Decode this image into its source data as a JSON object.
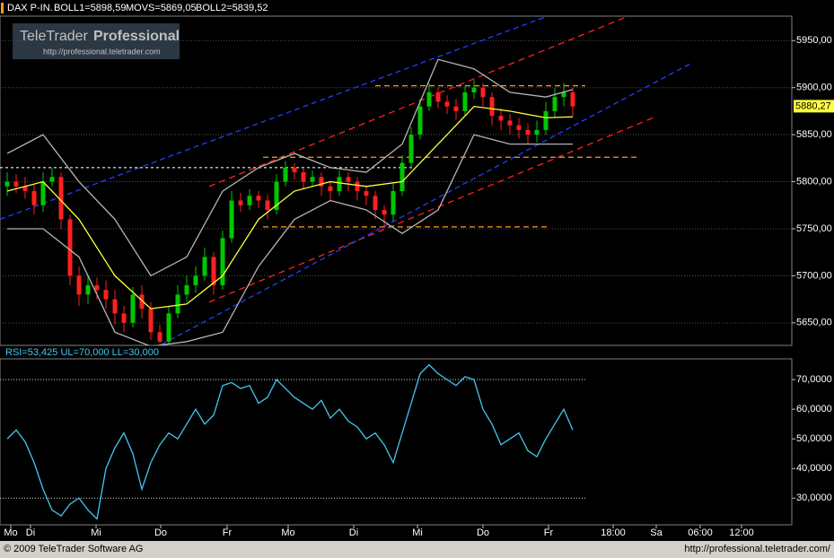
{
  "branding": {
    "name": "TeleTrader",
    "product": "Professional",
    "url": "http://professional.teletrader.com"
  },
  "footer": {
    "copyright": "© 2009 TeleTrader Software AG",
    "url": "http://professional.teletrader.com/"
  },
  "chart_data": [
    {
      "type": "candlestick",
      "title": "DAX P-IN.",
      "indicators": [
        "BOLL1=5898,59",
        "MOVS=5869,05",
        "BOLL2=5839,52"
      ],
      "last_value": {
        "value": 5880.27,
        "label": "5880,27"
      },
      "up_color": "#00c800",
      "down_color": "#ff2020",
      "grid": true,
      "xlim": [
        -0.8,
        87.4
      ],
      "ylim": [
        5626,
        5976
      ],
      "yticks": [
        {
          "value": 5650,
          "label": "5650,00"
        },
        {
          "value": 5700,
          "label": "5700,00"
        },
        {
          "value": 5750,
          "label": "5750,00"
        },
        {
          "value": 5800,
          "label": "5800,00"
        },
        {
          "value": 5850,
          "label": "5850,00"
        },
        {
          "value": 5900,
          "label": "5900,00"
        },
        {
          "value": 5950,
          "label": "5950,00"
        }
      ],
      "x": [
        0,
        1,
        2,
        3,
        4,
        5,
        6,
        7,
        8,
        9,
        10,
        11,
        12,
        13,
        14,
        15,
        16,
        17,
        18,
        19,
        20,
        21,
        22,
        23,
        24,
        25,
        26,
        27,
        28,
        29,
        30,
        31,
        32,
        33,
        34,
        35,
        36,
        37,
        38,
        39,
        40,
        41,
        42,
        43,
        44,
        45,
        46,
        47,
        48,
        49,
        50,
        51,
        52,
        53,
        54,
        55,
        56,
        57,
        58,
        59,
        60,
        61,
        62,
        63
      ],
      "open": [
        5795,
        5800,
        5795,
        5790,
        5775,
        5800,
        5805,
        5760,
        5700,
        5680,
        5690,
        5685,
        5675,
        5660,
        5650,
        5680,
        5665,
        5640,
        5630,
        5660,
        5680,
        5690,
        5700,
        5720,
        5690,
        5740,
        5780,
        5775,
        5785,
        5780,
        5770,
        5800,
        5815,
        5810,
        5800,
        5805,
        5795,
        5790,
        5805,
        5800,
        5790,
        5785,
        5770,
        5765,
        5790,
        5820,
        5850,
        5880,
        5895,
        5885,
        5880,
        5875,
        5895,
        5900,
        5890,
        5870,
        5865,
        5860,
        5855,
        5850,
        5855,
        5875,
        5890,
        5895
      ],
      "high": [
        5810,
        5808,
        5805,
        5798,
        5810,
        5815,
        5810,
        5765,
        5710,
        5700,
        5698,
        5695,
        5685,
        5668,
        5688,
        5690,
        5672,
        5648,
        5668,
        5690,
        5700,
        5710,
        5730,
        5725,
        5748,
        5790,
        5788,
        5792,
        5790,
        5786,
        5808,
        5822,
        5820,
        5815,
        5812,
        5810,
        5800,
        5812,
        5810,
        5805,
        5796,
        5790,
        5775,
        5798,
        5828,
        5858,
        5888,
        5905,
        5900,
        5892,
        5888,
        5902,
        5908,
        5905,
        5895,
        5878,
        5872,
        5868,
        5862,
        5865,
        5885,
        5900,
        5905,
        5900
      ],
      "low": [
        5785,
        5788,
        5782,
        5765,
        5768,
        5795,
        5750,
        5690,
        5668,
        5670,
        5675,
        5665,
        5648,
        5640,
        5645,
        5655,
        5632,
        5628,
        5628,
        5655,
        5672,
        5682,
        5695,
        5680,
        5685,
        5735,
        5768,
        5770,
        5772,
        5760,
        5765,
        5795,
        5802,
        5792,
        5795,
        5785,
        5780,
        5785,
        5790,
        5780,
        5775,
        5760,
        5752,
        5758,
        5785,
        5815,
        5845,
        5875,
        5878,
        5872,
        5866,
        5870,
        5888,
        5880,
        5860,
        5855,
        5850,
        5846,
        5840,
        5842,
        5850,
        5868,
        5880,
        5870
      ],
      "close": [
        5800,
        5795,
        5790,
        5775,
        5800,
        5805,
        5760,
        5700,
        5680,
        5690,
        5685,
        5675,
        5660,
        5650,
        5680,
        5665,
        5640,
        5630,
        5660,
        5680,
        5690,
        5700,
        5720,
        5690,
        5740,
        5780,
        5775,
        5785,
        5780,
        5770,
        5800,
        5815,
        5810,
        5800,
        5805,
        5795,
        5790,
        5805,
        5800,
        5790,
        5785,
        5770,
        5765,
        5790,
        5820,
        5850,
        5880,
        5895,
        5885,
        5880,
        5875,
        5895,
        5900,
        5890,
        5870,
        5865,
        5860,
        5855,
        5850,
        5855,
        5875,
        5890,
        5895,
        5880
      ],
      "series": [
        {
          "color": "#b4b4b4",
          "x": [
            0,
            4,
            8,
            12,
            16,
            20,
            24,
            28,
            32,
            36,
            40,
            44,
            48,
            52,
            56,
            60,
            63
          ],
          "values": [
            5830,
            5850,
            5800,
            5760,
            5700,
            5720,
            5790,
            5815,
            5830,
            5815,
            5810,
            5840,
            5930,
            5920,
            5895,
            5890,
            5898
          ]
        },
        {
          "color": "#ffff40",
          "x": [
            0,
            4,
            8,
            12,
            16,
            20,
            24,
            28,
            32,
            36,
            40,
            44,
            48,
            52,
            56,
            60,
            63
          ],
          "values": [
            5790,
            5800,
            5760,
            5700,
            5665,
            5670,
            5700,
            5760,
            5790,
            5800,
            5795,
            5800,
            5840,
            5880,
            5875,
            5868,
            5869
          ]
        },
        {
          "color": "#b4b4b4",
          "x": [
            0,
            4,
            8,
            12,
            16,
            20,
            24,
            28,
            32,
            36,
            40,
            44,
            48,
            52,
            56,
            60,
            63
          ],
          "values": [
            5750,
            5750,
            5720,
            5640,
            5625,
            5630,
            5640,
            5710,
            5760,
            5780,
            5770,
            5745,
            5770,
            5850,
            5840,
            5840,
            5840
          ]
        }
      ],
      "lines": [
        {
          "color": "#ff2020",
          "dash": "7 5",
          "x": [
            22.5,
            69.2
          ],
          "values": [
            5795,
            5976
          ]
        },
        {
          "color": "#ff2020",
          "dash": "7 5",
          "x": [
            22.5,
            72.2
          ],
          "values": [
            5672,
            5869
          ]
        },
        {
          "color": "#2040ff",
          "dash": "6 4",
          "x": [
            -0.8,
            60.2
          ],
          "values": [
            5760,
            5976
          ]
        },
        {
          "color": "#2040ff",
          "dash": "6 4",
          "x": [
            17.2,
            76.2
          ],
          "values": [
            5627,
            5926
          ]
        },
        {
          "color": "#ff9a20",
          "dash": "6 4",
          "x": [
            41,
            64.4
          ],
          "values": [
            5902,
            5902
          ]
        },
        {
          "color": "#ff9a20",
          "dash": "6 4",
          "x": [
            28.5,
            70.2
          ],
          "values": [
            5826,
            5826
          ]
        },
        {
          "color": "#ff9a20",
          "dash": "6 4",
          "x": [
            28.5,
            60.2
          ],
          "values": [
            5752,
            5752
          ]
        },
        {
          "color": "#c8c8c8",
          "dash": "3 3",
          "x": [
            -0.8,
            45.2
          ],
          "values": [
            5815,
            5815
          ]
        }
      ]
    },
    {
      "type": "line",
      "title": "RSI=53,425 UL=70,000 LL=30,000",
      "grid": false,
      "xlim": [
        -0.8,
        87.4
      ],
      "ylim": [
        21,
        77
      ],
      "yticks": [
        {
          "value": 30,
          "label": "30,0000"
        },
        {
          "value": 40,
          "label": "40,0000"
        },
        {
          "value": 50,
          "label": "50,0000"
        },
        {
          "value": 60,
          "label": "60,0000"
        },
        {
          "value": 70,
          "label": "70,0000"
        }
      ],
      "xticks": [
        {
          "value": 0.4,
          "label": "Mo"
        },
        {
          "value": 2.6,
          "label": "Di"
        },
        {
          "value": 9.9,
          "label": "Mi"
        },
        {
          "value": 17.1,
          "label": "Do"
        },
        {
          "value": 24.5,
          "label": "Fr"
        },
        {
          "value": 31.3,
          "label": "Mo"
        },
        {
          "value": 38.6,
          "label": "Di"
        },
        {
          "value": 45.7,
          "label": "Mi"
        },
        {
          "value": 53,
          "label": "Do"
        },
        {
          "value": 60.3,
          "label": "Fr"
        },
        {
          "value": 67.5,
          "label": "18:00"
        },
        {
          "value": 72.3,
          "label": "Sa"
        },
        {
          "value": 77.2,
          "label": "06:00"
        },
        {
          "value": 81.8,
          "label": "12:00"
        }
      ],
      "limits": {
        "x": [
          -0.8,
          64.4
        ],
        "values": [
          70,
          30
        ],
        "color": "#e0e0e0"
      },
      "series": [
        {
          "color": "#40c8f0",
          "x": [
            0,
            1,
            2,
            3,
            4,
            5,
            6,
            7,
            8,
            9,
            10,
            11,
            12,
            13,
            14,
            15,
            16,
            17,
            18,
            19,
            20,
            21,
            22,
            23,
            24,
            25,
            26,
            27,
            28,
            29,
            30,
            31,
            32,
            33,
            34,
            35,
            36,
            37,
            38,
            39,
            40,
            41,
            42,
            43,
            44,
            45,
            46,
            47,
            48,
            49,
            50,
            51,
            52,
            53,
            54,
            55,
            56,
            57,
            58,
            59,
            60,
            61,
            62,
            63
          ],
          "values": [
            50,
            53,
            49,
            42,
            33,
            26,
            24,
            28,
            30,
            26,
            23,
            40,
            47,
            52,
            45,
            33,
            42,
            48,
            52,
            50,
            55,
            60,
            55,
            58,
            68,
            69,
            67,
            68,
            62,
            64,
            70,
            67,
            64,
            62,
            60,
            63,
            57,
            60,
            56,
            54,
            50,
            52,
            48,
            42,
            52,
            62,
            72,
            75,
            72,
            70,
            68,
            71,
            70,
            60,
            55,
            48,
            50,
            52,
            46,
            44,
            50,
            55,
            60,
            53
          ]
        }
      ]
    }
  ]
}
